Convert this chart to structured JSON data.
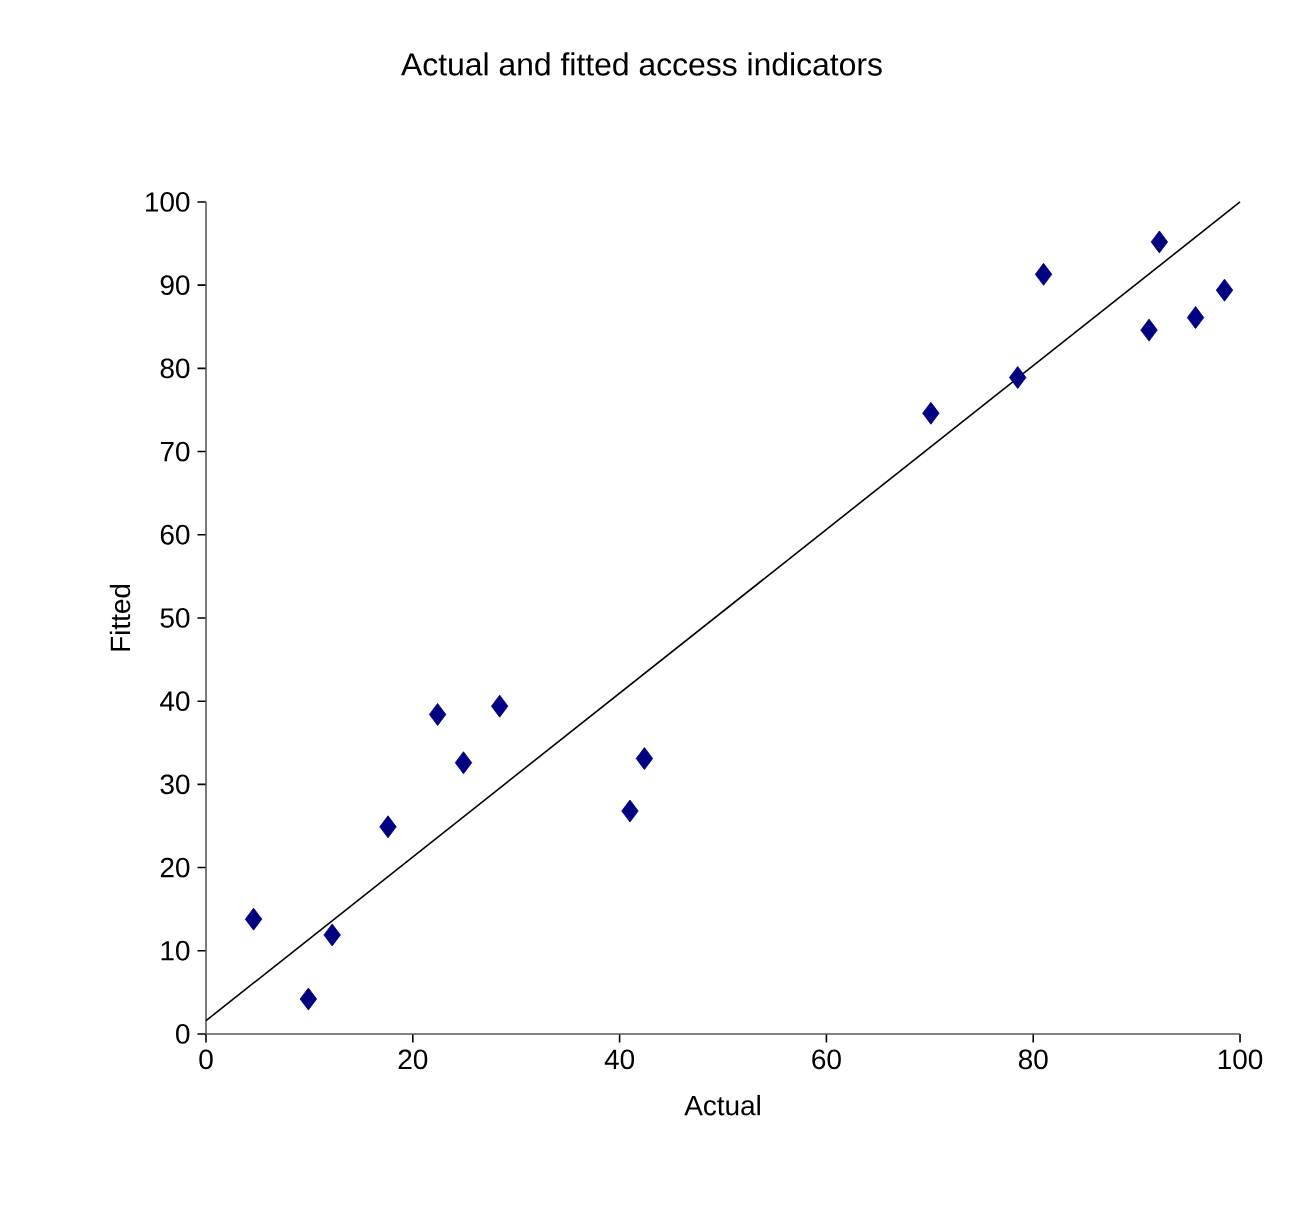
{
  "chart_data": {
    "type": "scatter",
    "title": "Actual and fitted access indicators",
    "xlabel": "Actual",
    "ylabel": "Fitted",
    "xlim": [
      0,
      100
    ],
    "ylim": [
      0,
      100
    ],
    "xticks": [
      0,
      20,
      40,
      60,
      80,
      100
    ],
    "yticks": [
      0,
      10,
      20,
      30,
      40,
      50,
      60,
      70,
      80,
      90,
      100
    ],
    "grid": false,
    "series": [
      {
        "marker": "diamond",
        "color": "#000080",
        "x": [
          4.6,
          9.9,
          12.2,
          17.6,
          22.4,
          24.9,
          28.4,
          41.0,
          42.4,
          70.1,
          78.5,
          81.0,
          91.2,
          92.2,
          95.7,
          98.5
        ],
        "values": [
          13.8,
          4.2,
          11.9,
          24.9,
          38.4,
          32.6,
          39.4,
          26.8,
          33.1,
          74.6,
          78.9,
          91.3,
          84.6,
          95.2,
          86.1,
          89.4
        ]
      },
      {
        "type": "line",
        "marker": "none",
        "color": "#000000",
        "x": [
          0,
          100
        ],
        "values": [
          1.6,
          100
        ]
      }
    ]
  }
}
